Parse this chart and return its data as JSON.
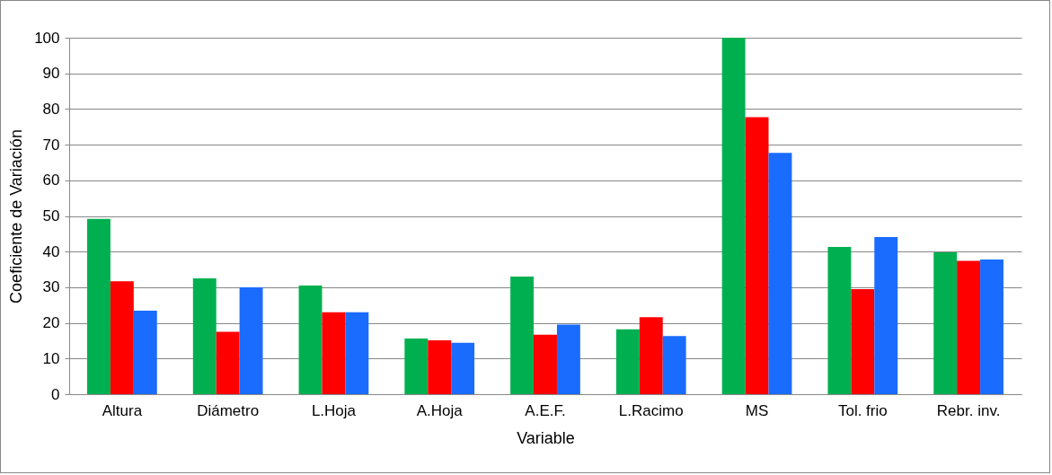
{
  "chart_data": {
    "type": "bar",
    "xlabel": "Variable",
    "ylabel": "Coeficiente de Variación",
    "categories": [
      "Altura",
      "Diámetro",
      "L.Hoja",
      "A.Hoja",
      "A.E.F.",
      "L.Racimo",
      "MS",
      "Tol. frio",
      "Rebr. inv."
    ],
    "series": [
      {
        "color": "#00b050",
        "values": [
          49.2,
          32.5,
          30.5,
          15.6,
          33,
          18.2,
          100,
          41.3,
          39.8
        ]
      },
      {
        "color": "#ff0000",
        "values": [
          31.7,
          17.5,
          23,
          15.1,
          16.7,
          21.6,
          77.7,
          29.5,
          37.4
        ]
      },
      {
        "color": "#1a6cff",
        "values": [
          23.4,
          30,
          23,
          14.4,
          19.5,
          16.3,
          67.7,
          44.1,
          37.8
        ]
      }
    ],
    "ylim": [
      0,
      100
    ],
    "yticks": [
      0,
      10,
      20,
      30,
      40,
      50,
      60,
      70,
      80,
      90,
      100
    ],
    "grid": "y",
    "legend": false
  }
}
